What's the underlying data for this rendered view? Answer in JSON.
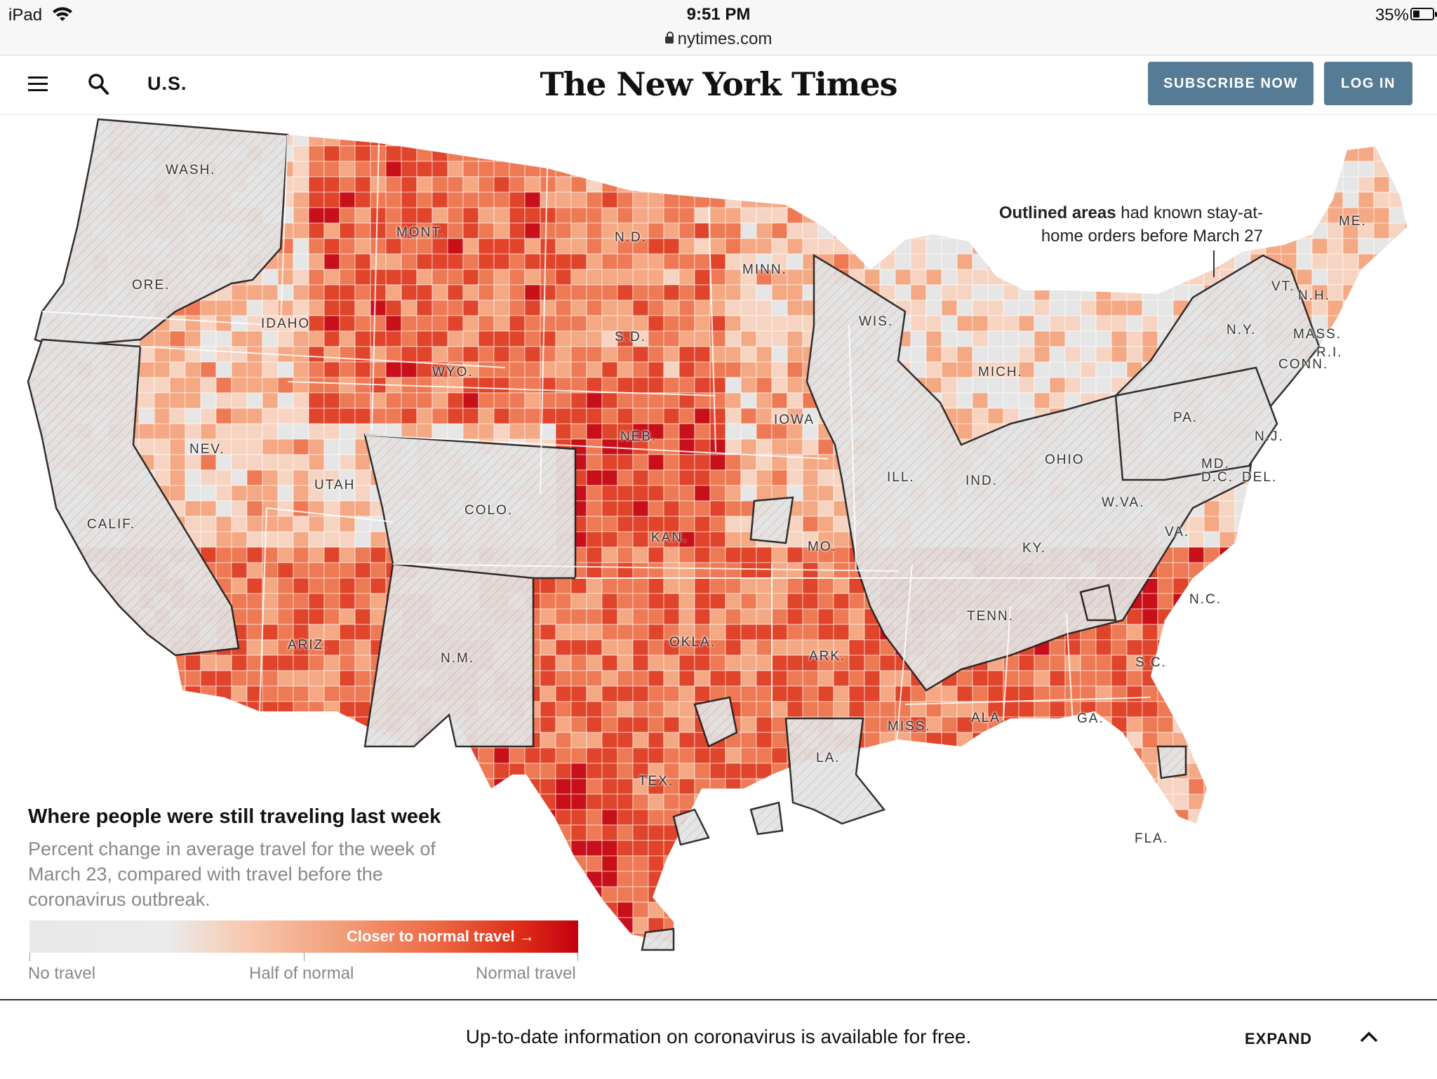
{
  "status_bar": {
    "device": "iPad",
    "time": "9:51 PM",
    "url": "nytimes.com",
    "battery": "35%",
    "battery_level": 0.35
  },
  "header": {
    "section": "U.S.",
    "logo": "The New York Times",
    "subscribe_label": "SUBSCRIBE NOW",
    "login_label": "LOG IN",
    "icons": [
      "menu-icon",
      "search-icon"
    ],
    "button_color": "#567b95"
  },
  "map": {
    "annotation_bold": "Outlined areas",
    "annotation_rest": " had known stay-at-home orders before March 27",
    "state_labels": {
      "wash": "WASH.",
      "ore": "ORE.",
      "calif": "CALIF.",
      "idaho": "IDAHO",
      "nev": "NEV.",
      "mont": "MONT.",
      "wyo": "WYO.",
      "utah": "UTAH",
      "ariz": "ARIZ.",
      "colo": "COLO.",
      "nm": "N.M.",
      "nd": "N.D.",
      "sd": "S.D.",
      "neb": "NEB.",
      "kan": "KAN.",
      "okla": "OKLA.",
      "tex": "TEX.",
      "minn": "MINN.",
      "iowa": "IOWA",
      "mo": "MO.",
      "ark": "ARK.",
      "la": "LA.",
      "wis": "WIS.",
      "ill": "ILL.",
      "mich": "MICH.",
      "ind": "IND.",
      "ohio": "OHIO",
      "ky": "KY.",
      "tenn": "TENN.",
      "miss": "MISS.",
      "ala": "ALA.",
      "ga": "GA.",
      "fla": "FLA.",
      "sc": "S.C.",
      "nc": "N.C.",
      "va": "VA.",
      "wva": "W.VA.",
      "pa": "PA.",
      "ny": "N.Y.",
      "me": "ME.",
      "vt": "VT.",
      "nh": "N.H.",
      "mass": "MASS.",
      "ri": "R.I.",
      "conn": "CONN.",
      "nj": "N.J.",
      "md": "MD.",
      "dc": "D.C.",
      "del": "DEL."
    },
    "scale_colors": [
      "#e6e6e6",
      "#f7d4c2",
      "#f4a883",
      "#ee7a55",
      "#e0442a",
      "#c8101a",
      "#a8000e"
    ]
  },
  "legend": {
    "title": "Where people were still traveling last week",
    "subtitle": "Percent change in average travel for the week of March 23, compared with travel before the coronavirus outbreak.",
    "bar_label": "Closer to normal travel →",
    "tick_no": "No travel",
    "tick_half": "Half of normal",
    "tick_normal": "Normal travel"
  },
  "bottom_bar": {
    "message": "Up-to-date information on coronavirus is available for free.",
    "expand_label": "EXPAND"
  }
}
